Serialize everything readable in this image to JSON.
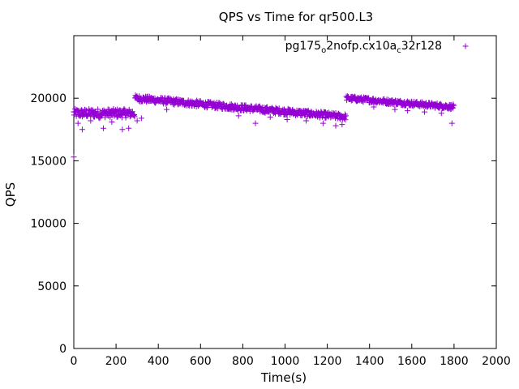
{
  "chart_data": {
    "type": "scatter",
    "title": "QPS vs Time for qr500.L3",
    "xlabel": "Time(s)",
    "ylabel": "QPS",
    "xlim": [
      0,
      2000
    ],
    "ylim": [
      0,
      25000
    ],
    "x_ticks": [
      0,
      200,
      400,
      600,
      800,
      1000,
      1200,
      1400,
      1600,
      1800,
      2000
    ],
    "y_ticks": [
      0,
      5000,
      10000,
      15000,
      20000
    ],
    "x_tick_labels": [
      "0",
      "200",
      "400",
      "600",
      "800",
      "1000",
      "1200",
      "1400",
      "1600",
      "1800",
      "2000"
    ],
    "y_tick_labels": [
      "0",
      "5000",
      "10000",
      "15000",
      "20000"
    ],
    "grid": false,
    "legend_position": "top-right",
    "marker": "+",
    "color": "#9400d3",
    "series": [
      {
        "name_parts": [
          "pg175",
          "o",
          "2nofp.cx10a",
          "c",
          "32r128"
        ],
        "segments": [
          {
            "x_start": 0,
            "x_end": 290,
            "center": 18800,
            "spread": 700
          },
          {
            "x_start": 290,
            "x_end": 1290,
            "center_start": 20000,
            "center_end": 18500,
            "spread": 500
          },
          {
            "x_start": 1290,
            "x_end": 1800,
            "center_start": 20000,
            "center_end": 19300,
            "spread": 400
          }
        ],
        "step_seconds": 2,
        "outliers": [
          [
            0,
            15300
          ],
          [
            20,
            18000
          ],
          [
            40,
            17500
          ],
          [
            60,
            18600
          ],
          [
            80,
            18200
          ],
          [
            120,
            18400
          ],
          [
            140,
            17600
          ],
          [
            180,
            18100
          ],
          [
            230,
            17500
          ],
          [
            260,
            17600
          ],
          [
            300,
            18200
          ],
          [
            320,
            18400
          ],
          [
            440,
            19100
          ],
          [
            560,
            19400
          ],
          [
            780,
            18600
          ],
          [
            860,
            18000
          ],
          [
            930,
            18500
          ],
          [
            1010,
            18300
          ],
          [
            1100,
            18200
          ],
          [
            1180,
            18000
          ],
          [
            1240,
            17800
          ],
          [
            1270,
            17900
          ],
          [
            1420,
            19300
          ],
          [
            1520,
            19100
          ],
          [
            1580,
            19000
          ],
          [
            1660,
            18900
          ],
          [
            1740,
            18800
          ],
          [
            1790,
            18000
          ]
        ]
      }
    ]
  }
}
